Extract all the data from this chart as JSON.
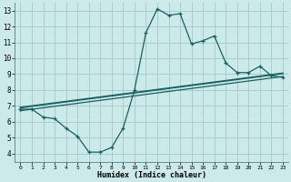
{
  "xlabel": "Humidex (Indice chaleur)",
  "ylabel": "",
  "bg_color": "#cceaea",
  "grid_color": "#aacccc",
  "line_color": "#1a6060",
  "xlim": [
    -0.5,
    23.5
  ],
  "ylim": [
    3.5,
    13.5
  ],
  "xticks": [
    0,
    1,
    2,
    3,
    4,
    5,
    6,
    7,
    8,
    9,
    10,
    11,
    12,
    13,
    14,
    15,
    16,
    17,
    18,
    19,
    20,
    21,
    22,
    23
  ],
  "yticks": [
    4,
    5,
    6,
    7,
    8,
    9,
    10,
    11,
    12,
    13
  ],
  "main_x": [
    0,
    1,
    2,
    3,
    4,
    5,
    6,
    7,
    8,
    9,
    10,
    11,
    12,
    13,
    14,
    15,
    16,
    17,
    18,
    19,
    20,
    21,
    22,
    23
  ],
  "main_y": [
    6.8,
    6.8,
    6.3,
    6.2,
    5.6,
    5.1,
    4.1,
    4.1,
    4.4,
    5.6,
    8.0,
    11.6,
    13.1,
    12.7,
    12.8,
    10.9,
    11.1,
    11.4,
    9.7,
    9.1,
    9.1,
    9.5,
    8.9,
    8.8
  ],
  "line1_x": [
    0,
    23
  ],
  "line1_y": [
    6.7,
    8.85
  ],
  "line2_x": [
    0,
    23
  ],
  "line2_y": [
    6.9,
    9.05
  ]
}
